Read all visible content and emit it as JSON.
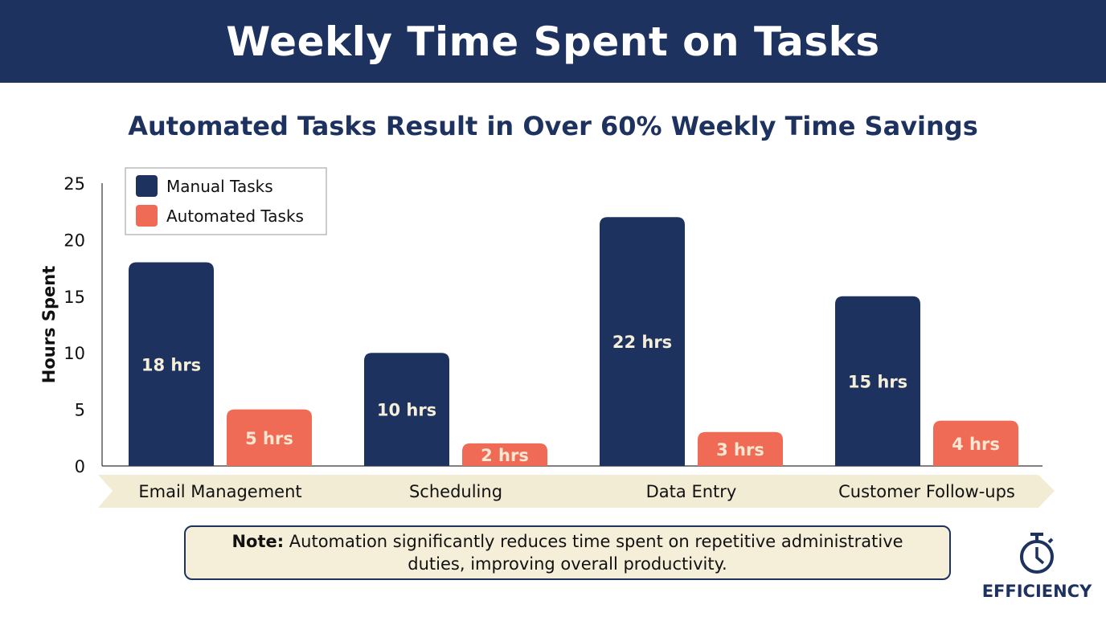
{
  "header": {
    "title": "Weekly Time Spent on Tasks"
  },
  "note": {
    "label": "Note:",
    "text": " Automation significantly reduces time spent on repetitive administrative duties, improving overall productivity."
  },
  "badge": {
    "icon": "stopwatch-icon",
    "label": "EFFICIENCY"
  },
  "colors": {
    "manual": "#1e3260",
    "automated": "#ef6b56",
    "header": "#1e3260",
    "ribbon": "#f3ecd5"
  },
  "chart_data": {
    "type": "bar",
    "title": "Automated Tasks Result in Over 60% Weekly Time Savings",
    "xlabel": "",
    "ylabel": "Hours Spent",
    "ylim": [
      0,
      25
    ],
    "yticks": [
      "0",
      "5",
      "10",
      "15",
      "20",
      "25"
    ],
    "grid": false,
    "legend": "top-left",
    "categories": [
      "Email Management",
      "Scheduling",
      "Data Entry",
      "Customer Follow-ups"
    ],
    "series": [
      {
        "name": "Manual Tasks",
        "values": [
          18,
          10,
          22,
          15
        ],
        "labels": [
          "18 hrs",
          "10 hrs",
          "22 hrs",
          "15 hrs"
        ]
      },
      {
        "name": "Automated Tasks",
        "values": [
          5,
          2,
          3,
          4
        ],
        "labels": [
          "5 hrs",
          "2 hrs",
          "3 hrs",
          "4 hrs"
        ]
      }
    ]
  }
}
